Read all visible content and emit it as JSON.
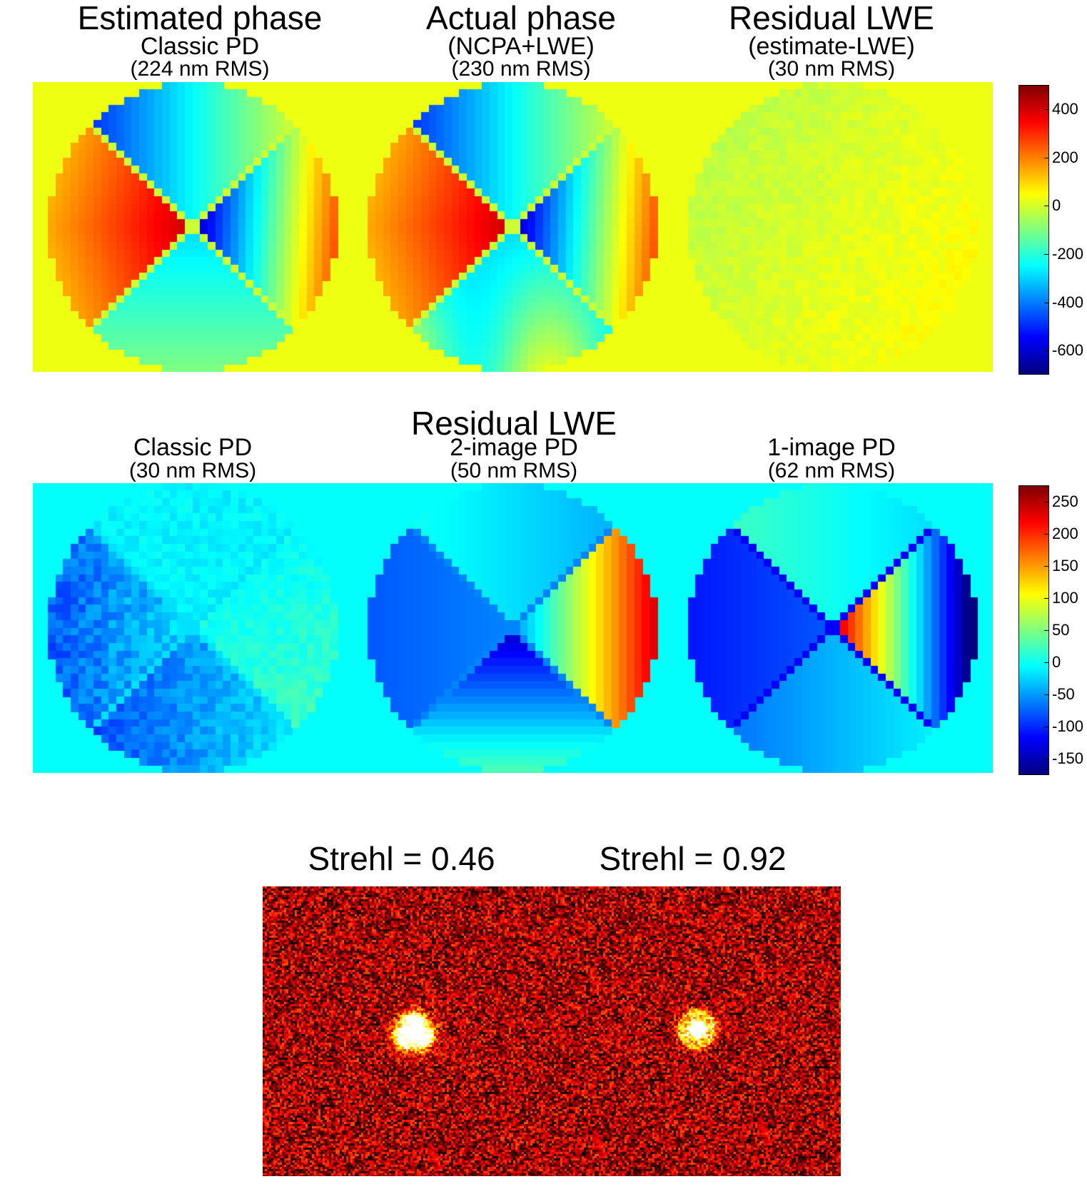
{
  "top_row": {
    "panels": [
      {
        "title": "Estimated phase",
        "subtitle": "Classic PD",
        "rms": "(224 nm RMS)"
      },
      {
        "title": "Actual phase",
        "subtitle": "(NCPA+LWE)",
        "rms": "(230 nm RMS)"
      },
      {
        "title": "Residual LWE",
        "subtitle": "(estimate-LWE)",
        "rms": "(30 nm RMS)"
      }
    ],
    "colorbar": {
      "range": [
        -700,
        500
      ],
      "ticks": [
        "400",
        "200",
        "0",
        "-200",
        "-400",
        "-600"
      ],
      "tick_values": [
        400,
        200,
        0,
        -200,
        -400,
        -600
      ]
    }
  },
  "middle_row": {
    "title": "Residual LWE",
    "panels": [
      {
        "subtitle": "Classic PD",
        "rms": "(30 nm RMS)"
      },
      {
        "subtitle": "2-image PD",
        "rms": "(50 nm RMS)"
      },
      {
        "subtitle": "1-image PD",
        "rms": "(62 nm RMS)"
      }
    ],
    "colorbar": {
      "range": [
        -175,
        275
      ],
      "ticks": [
        "250",
        "200",
        "150",
        "100",
        "50",
        "0",
        "-50",
        "-100",
        "-150"
      ],
      "tick_values": [
        250,
        200,
        150,
        100,
        50,
        0,
        -50,
        -100,
        -150
      ]
    }
  },
  "bottom_row": {
    "labels": [
      "Strehl = 0.46",
      "Strehl = 0.92"
    ]
  },
  "colors": {
    "colormap": "jet",
    "psf_colormap": "hot",
    "background": "#ffffff"
  }
}
